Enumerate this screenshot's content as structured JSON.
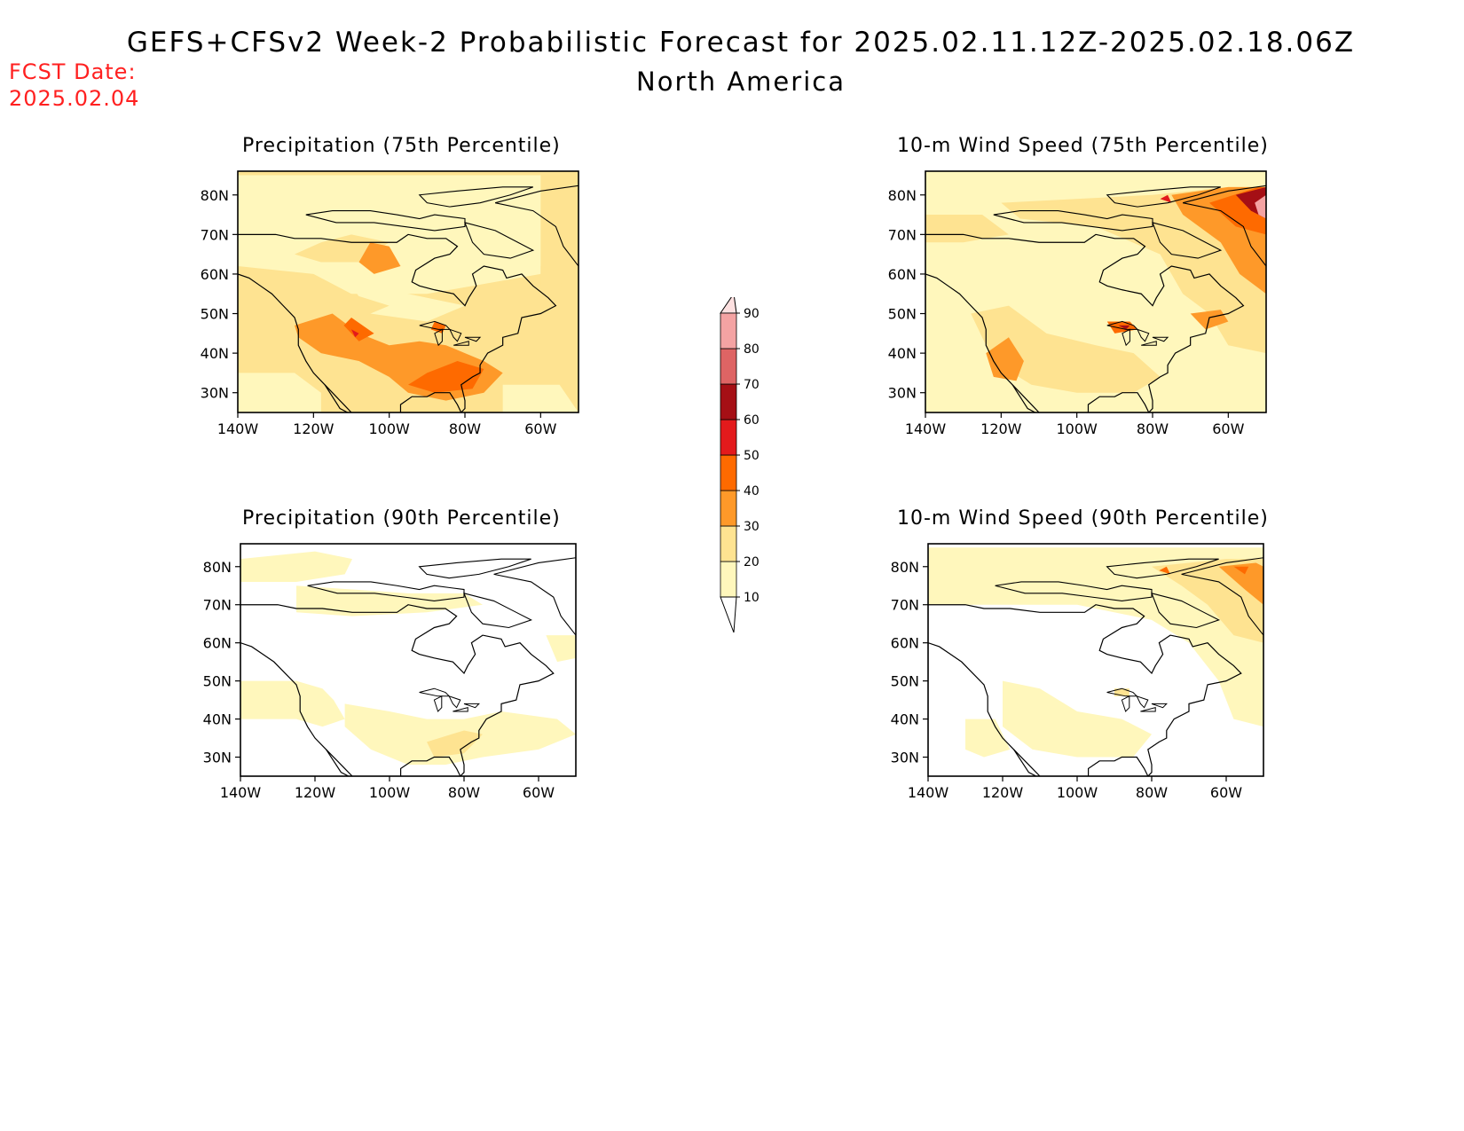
{
  "header": {
    "title": "GEFS+CFSv2 Week-2 Probabilistic Forecast for 2025.02.11.12Z-2025.02.18.06Z",
    "subtitle": "North America",
    "fcst_label": "FCST Date:",
    "fcst_date": "2025.02.04"
  },
  "colors": {
    "levels": [
      "#fff7bc",
      "#fee391",
      "#fe9929",
      "#fe6a00",
      "#e31a1c",
      "#a50f15",
      "#de6464",
      "#f4a3a3",
      "#fde0e0"
    ],
    "outline": "#000000"
  },
  "axes": {
    "lat_ticks": [
      "30N",
      "40N",
      "50N",
      "60N",
      "70N",
      "80N"
    ],
    "lon_ticks": [
      "140W",
      "120W",
      "100W",
      "80W",
      "60W"
    ]
  },
  "panels": [
    {
      "title": "Precipitation (75th Percentile)"
    },
    {
      "title": "10-m Wind Speed (75th Percentile)"
    },
    {
      "title": "Precipitation (90th Percentile)"
    },
    {
      "title": "10-m Wind Speed (90th Percentile)"
    }
  ],
  "colorbar": {
    "labels": [
      "10",
      "20",
      "30",
      "40",
      "50",
      "60",
      "70",
      "80",
      "90"
    ]
  }
}
